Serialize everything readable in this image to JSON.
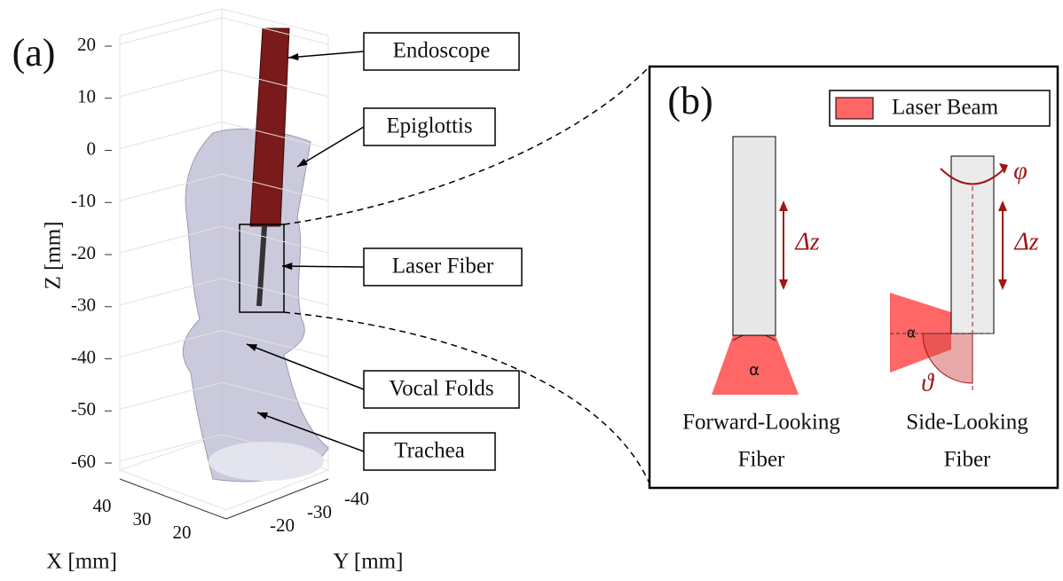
{
  "panel_a": {
    "label": "(a)",
    "z_axis": {
      "label": "Z [mm]",
      "ticks": [
        20,
        10,
        0,
        -10,
        -20,
        -30,
        -40,
        -50,
        -60
      ]
    },
    "x_axis": {
      "label": "X [mm]",
      "ticks": [
        40,
        30,
        20
      ]
    },
    "y_axis": {
      "label": "Y [mm]",
      "ticks": [
        -20,
        -30,
        -40
      ]
    },
    "annotations": [
      "Endoscope",
      "Epiglottis",
      "Laser Fiber",
      "Vocal Folds",
      "Trachea"
    ]
  },
  "panel_b": {
    "label": "(b)",
    "legend": "Laser Beam",
    "forward": {
      "caption": [
        "Forward-Looking",
        "Fiber"
      ],
      "angle": "α",
      "shift": "Δz"
    },
    "side": {
      "caption": [
        "Side-Looking",
        "Fiber"
      ],
      "angle": "α",
      "shift": "Δz",
      "rotation": "φ",
      "tilt": "ϑ"
    }
  }
}
